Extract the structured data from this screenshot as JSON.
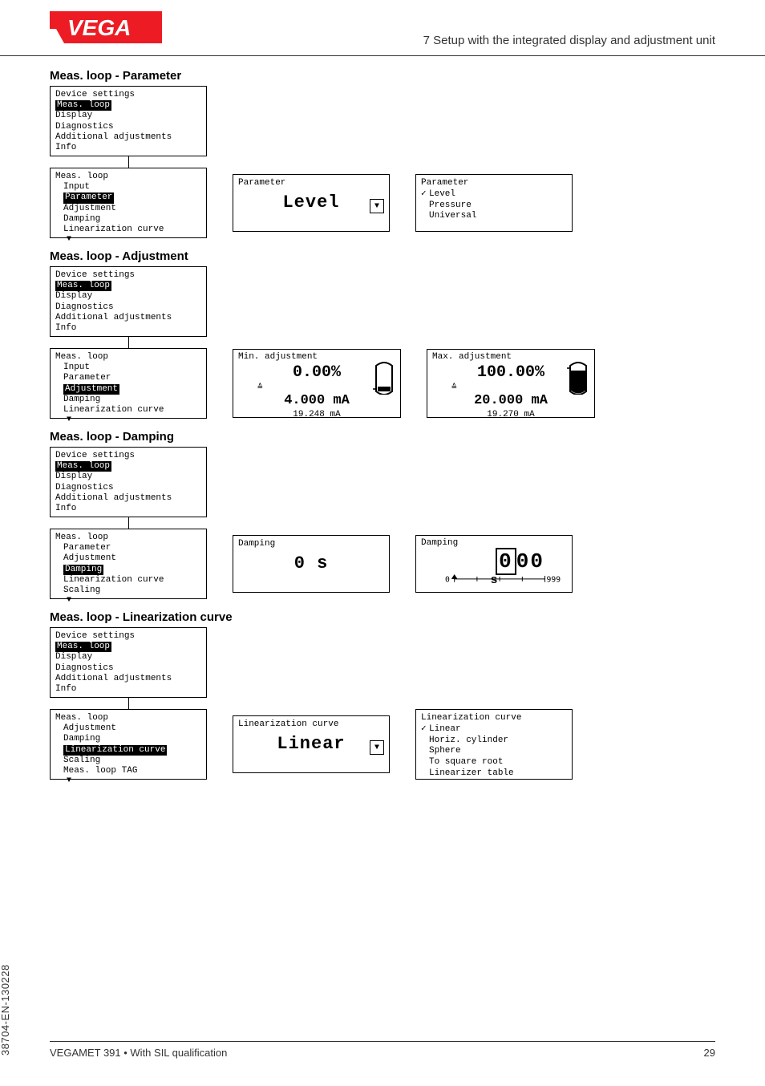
{
  "header": {
    "section": "7 Setup with the integrated display and adjustment unit"
  },
  "logo": {
    "bg": "#ed1c24",
    "text": "VEGA",
    "color": "#ffffff"
  },
  "sections": {
    "param": {
      "title": "Meas. loop - Parameter",
      "root_menu": [
        "Device settings",
        "Meas. loop",
        "Display",
        "Diagnostics",
        "Additional adjustments",
        "Info"
      ],
      "root_highlight": 1,
      "sub_menu": [
        "Meas. loop",
        "Input",
        "Parameter",
        "Adjustment",
        "Damping",
        "Linearization curve"
      ],
      "sub_highlight": 2,
      "value_label": "Parameter",
      "value_big": "Level",
      "options_label": "Parameter",
      "options": [
        "Level",
        "Pressure",
        "Universal"
      ],
      "options_selected": 0
    },
    "adjust": {
      "title": "Meas. loop - Adjustment",
      "root_menu": [
        "Device settings",
        "Meas. loop",
        "Display",
        "Diagnostics",
        "Additional adjustments",
        "Info"
      ],
      "root_highlight": 1,
      "sub_menu": [
        "Meas. loop",
        "Input",
        "Parameter",
        "Adjustment",
        "Damping",
        "Linearization curve"
      ],
      "sub_highlight": 3,
      "min": {
        "title": "Min. adjustment",
        "pct": "0.00%",
        "ma": "4.000 mA",
        "raw": "19.248 mA",
        "fill": 0.12
      },
      "max": {
        "title": "Max. adjustment",
        "pct": "100.00%",
        "ma": "20.000 mA",
        "raw": "19.270 mA",
        "fill": 0.88
      }
    },
    "damp": {
      "title": "Meas. loop - Damping",
      "root_menu": [
        "Device settings",
        "Meas. loop",
        "Display",
        "Diagnostics",
        "Additional adjustments",
        "Info"
      ],
      "root_highlight": 1,
      "sub_menu": [
        "Meas. loop",
        "Parameter",
        "Adjustment",
        "Damping",
        "Linearization curve",
        "Scaling"
      ],
      "sub_highlight": 3,
      "value_label": "Damping",
      "value_big": "0 s",
      "odo_label": "Damping",
      "odo_value": "000",
      "odo_leading_hl": 1,
      "odo_unit": "s",
      "odo_min": "0",
      "odo_max": "999"
    },
    "lin": {
      "title": "Meas. loop - Linearization curve",
      "root_menu": [
        "Device settings",
        "Meas. loop",
        "Display",
        "Diagnostics",
        "Additional adjustments",
        "Info"
      ],
      "root_highlight": 1,
      "sub_menu": [
        "Meas. loop",
        "Adjustment",
        "Damping",
        "Linearization curve",
        "Scaling",
        "Meas. loop TAG"
      ],
      "sub_highlight": 3,
      "value_label": "Linearization curve",
      "value_big": "Linear",
      "options_label": "Linearization curve",
      "options": [
        "Linear",
        "Horiz. cylinder",
        "Sphere",
        "To square root",
        "Linearizer table"
      ],
      "options_selected": 0
    }
  },
  "footer": {
    "docid": "38704-EN-130228",
    "product": "VEGAMET 391 • With SIL qualification",
    "page": "29"
  }
}
